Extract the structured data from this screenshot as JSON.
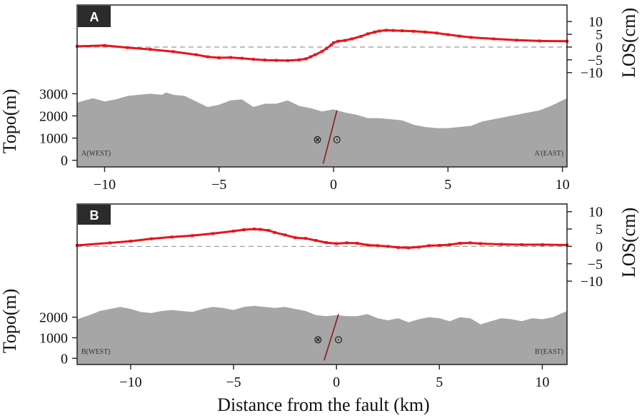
{
  "figure": {
    "xlabel": "Distance from the fault (km)"
  },
  "colors": {
    "los": "#e8141c",
    "topo": "#a6a6a6",
    "fault": "#8b1a1a",
    "zero_line": "#999999",
    "badge": "#2b2b2b"
  },
  "symbols": {
    "into_page": "⊗",
    "out_of_page": "⊙"
  },
  "chart_data": [
    {
      "type": "line",
      "panel": "A",
      "left_label": "A(WEST)",
      "right_label": "A'(EAST)",
      "xlim": [
        -11.2,
        10.2
      ],
      "x_ticks": [
        -10,
        -5,
        0,
        5,
        10
      ],
      "x_tick_labels": [
        "−10",
        "−5",
        "0",
        "5",
        "10"
      ],
      "ylabel_left": "Topo(m)",
      "ylabel_right": "LOS(cm)",
      "topo_ylim": [
        -300,
        7000
      ],
      "topo_ticks": [
        0,
        1000,
        2000,
        3000
      ],
      "los_ylim": [
        -47,
        16.5
      ],
      "los_ticks": [
        -10,
        -5,
        0,
        5,
        10
      ],
      "los_tick_labels": [
        "−10",
        "−5",
        "0",
        "5",
        "10"
      ],
      "fault": {
        "top": [
          0.15,
          2250
        ],
        "bottom": [
          -0.45,
          -150
        ]
      },
      "symbol_positions": {
        "into_page": [
          -0.7,
          900
        ],
        "out_of_page": [
          0.15,
          900
        ]
      },
      "series": [
        {
          "role": "los",
          "x": [
            -11.2,
            -10,
            -9,
            -8,
            -7,
            -6,
            -5.5,
            -5,
            -4.5,
            -4,
            -3.5,
            -3,
            -2.5,
            -2,
            -1.5,
            -1.2,
            -1,
            -0.8,
            -0.5,
            -0.3,
            -0.1,
            0,
            0.2,
            0.5,
            0.8,
            1.2,
            1.5,
            1.8,
            2,
            2.3,
            2.6,
            3,
            3.5,
            4,
            4.5,
            5,
            5.5,
            6,
            7,
            8,
            9,
            10.2
          ],
          "y": [
            0.3,
            0.6,
            -0.2,
            -0.9,
            -1.8,
            -3,
            -3.8,
            -4.2,
            -4.1,
            -4.4,
            -4.8,
            -5.1,
            -5.2,
            -5.3,
            -5,
            -4.6,
            -3.8,
            -3,
            -1.7,
            -0.5,
            0.8,
            1.7,
            2.3,
            2.6,
            3.2,
            4.2,
            5.2,
            5.9,
            6.3,
            6.6,
            6.5,
            6.4,
            6.2,
            5.9,
            5.5,
            4.9,
            4.3,
            3.8,
            3.2,
            2.7,
            2.4,
            2.3
          ]
        },
        {
          "role": "topo",
          "x": [
            -11.2,
            -10.5,
            -10,
            -9.5,
            -9,
            -8.5,
            -8,
            -7.5,
            -7.3,
            -7,
            -6.5,
            -6,
            -5.5,
            -5,
            -4.5,
            -4,
            -3.5,
            -3,
            -2.5,
            -2,
            -1.5,
            -1,
            -0.5,
            0,
            0.5,
            1,
            1.5,
            2,
            2.5,
            3,
            3.5,
            4,
            4.5,
            5,
            5.5,
            6,
            6.5,
            7,
            7.5,
            8,
            8.5,
            9,
            9.5,
            10.2
          ],
          "y": [
            2600,
            2800,
            2650,
            2750,
            2900,
            2950,
            3000,
            2950,
            3050,
            2950,
            2900,
            2650,
            2400,
            2500,
            2700,
            2750,
            2400,
            2550,
            2550,
            2700,
            2450,
            2350,
            2200,
            2300,
            2150,
            2050,
            1900,
            1900,
            1850,
            1800,
            1600,
            1500,
            1450,
            1450,
            1500,
            1550,
            1750,
            1850,
            1950,
            2050,
            2150,
            2250,
            2450,
            2800
          ]
        }
      ]
    },
    {
      "type": "line",
      "panel": "B",
      "left_label": "B(WEST)",
      "right_label": "B'(EAST)",
      "xlim": [
        -12.6,
        11.2
      ],
      "x_ticks": [
        -10,
        -5,
        0,
        5,
        10
      ],
      "x_tick_labels": [
        "−10",
        "−5",
        "0",
        "5",
        "10"
      ],
      "ylabel_left": "Topo(m)",
      "ylabel_right": "LOS(cm)",
      "topo_ylim": [
        -300,
        7500
      ],
      "topo_ticks": [
        0,
        1000,
        2000
      ],
      "los_ylim": [
        -34,
        12.2
      ],
      "los_ticks": [
        -10,
        -5,
        0,
        5,
        10
      ],
      "los_tick_labels": [
        "−10",
        "−5",
        "0",
        "5",
        "10"
      ],
      "fault": {
        "top": [
          0.1,
          2150
        ],
        "bottom": [
          -0.6,
          -100
        ]
      },
      "symbol_positions": {
        "into_page": [
          -0.9,
          880
        ],
        "out_of_page": [
          0.1,
          880
        ]
      },
      "series": [
        {
          "role": "los",
          "x": [
            -12.6,
            -11,
            -10,
            -9,
            -8,
            -7,
            -6,
            -5,
            -4.5,
            -4,
            -3.7,
            -3.3,
            -3,
            -2.5,
            -2,
            -1.5,
            -1,
            -0.5,
            0,
            0.5,
            1,
            1.5,
            2,
            2.5,
            3,
            3.5,
            4,
            4.5,
            5,
            5.5,
            6,
            6.5,
            7,
            8,
            9,
            10,
            11.2
          ],
          "y": [
            0.3,
            1,
            1.5,
            2.2,
            2.7,
            3.1,
            3.7,
            4.4,
            4.8,
            5,
            4.9,
            4.6,
            4,
            3.3,
            2.5,
            2.3,
            1.7,
            1.1,
            0.8,
            1,
            0.9,
            0.4,
            0.2,
            0,
            -0.3,
            -0.4,
            -0.2,
            0.2,
            0.3,
            0.5,
            0.9,
            1,
            0.8,
            0.6,
            0.5,
            0.5,
            0.4
          ]
        },
        {
          "role": "topo",
          "x": [
            -12.6,
            -12,
            -11.5,
            -11,
            -10.5,
            -10,
            -9.5,
            -9,
            -8.5,
            -8,
            -7.5,
            -7,
            -6.5,
            -6,
            -5.5,
            -5,
            -4.5,
            -4,
            -3.5,
            -3,
            -2.5,
            -2,
            -1.5,
            -1,
            -0.5,
            0,
            0.5,
            1,
            1.5,
            2,
            2.5,
            3,
            3.5,
            4,
            4.5,
            5,
            5.5,
            6,
            6.5,
            7,
            7.5,
            8,
            8.5,
            9,
            9.5,
            10,
            10.5,
            11.2
          ],
          "y": [
            1900,
            2100,
            2300,
            2400,
            2500,
            2400,
            2250,
            2200,
            2300,
            2350,
            2300,
            2250,
            2400,
            2500,
            2450,
            2350,
            2500,
            2550,
            2500,
            2450,
            2500,
            2400,
            2300,
            2100,
            2050,
            2100,
            2050,
            2050,
            2150,
            1950,
            1850,
            1950,
            1750,
            1900,
            2000,
            1950,
            1800,
            2000,
            1950,
            1650,
            1800,
            1950,
            1900,
            1800,
            1950,
            1900,
            2000,
            2300
          ]
        }
      ]
    }
  ]
}
